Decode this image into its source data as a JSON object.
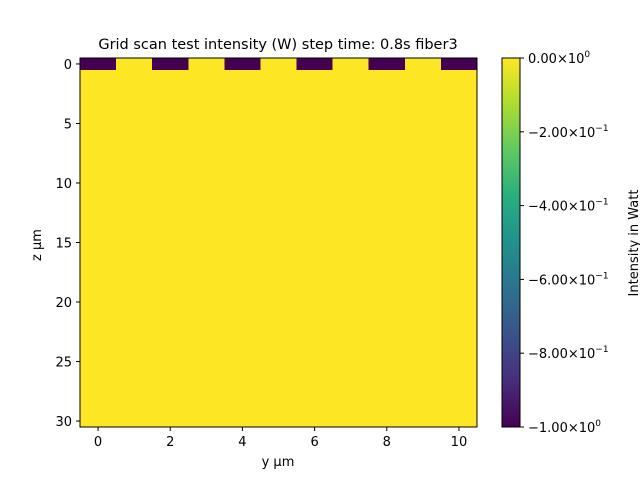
{
  "chart_data": {
    "type": "heatmap",
    "title": "Grid scan test intensity (W) step time: 0.8s fiber3",
    "xlabel": "y μm",
    "ylabel": "z μm",
    "x_values": [
      0,
      1,
      2,
      3,
      4,
      5,
      6,
      7,
      8,
      9,
      10
    ],
    "y_values": [
      0,
      1,
      2,
      3,
      4,
      5,
      6,
      7,
      8,
      9,
      10,
      11,
      12,
      13,
      14,
      15,
      16,
      17,
      18,
      19,
      20,
      21,
      22,
      23,
      24,
      25,
      26,
      27,
      28,
      29,
      30
    ],
    "xlim": [
      -0.5,
      10.5
    ],
    "ylim": [
      30.5,
      -0.5
    ],
    "x_ticks": [
      0,
      2,
      4,
      6,
      8,
      10
    ],
    "x_tick_labels": [
      "0",
      "2",
      "4",
      "6",
      "8",
      "10"
    ],
    "y_ticks": [
      0,
      5,
      10,
      15,
      20,
      25,
      30
    ],
    "y_tick_labels": [
      "0",
      "5",
      "10",
      "15",
      "20",
      "25",
      "30"
    ],
    "default_value": 0,
    "nonzero_cells": [
      {
        "x": 0,
        "y": 0,
        "value": -1
      },
      {
        "x": 2,
        "y": 0,
        "value": -1
      },
      {
        "x": 4,
        "y": 0,
        "value": -1
      },
      {
        "x": 6,
        "y": 0,
        "value": -1
      },
      {
        "x": 8,
        "y": 0,
        "value": -1
      },
      {
        "x": 10,
        "y": 0,
        "value": -1
      }
    ],
    "colormap": "viridis",
    "colorbar": {
      "label": "Intensity in Watt",
      "vmin": -1.0,
      "vmax": 0.0,
      "ticks": [
        0.0,
        -0.2,
        -0.4,
        -0.6,
        -0.8,
        -1.0
      ],
      "tick_mantissas": [
        "0.00",
        "−2.00",
        "−4.00",
        "−6.00",
        "−8.00",
        "−1.00"
      ],
      "tick_exponents": [
        "0",
        "−1",
        "−1",
        "−1",
        "−1",
        "0"
      ]
    },
    "colors": {
      "max": "#fde725",
      "min": "#440154"
    }
  }
}
